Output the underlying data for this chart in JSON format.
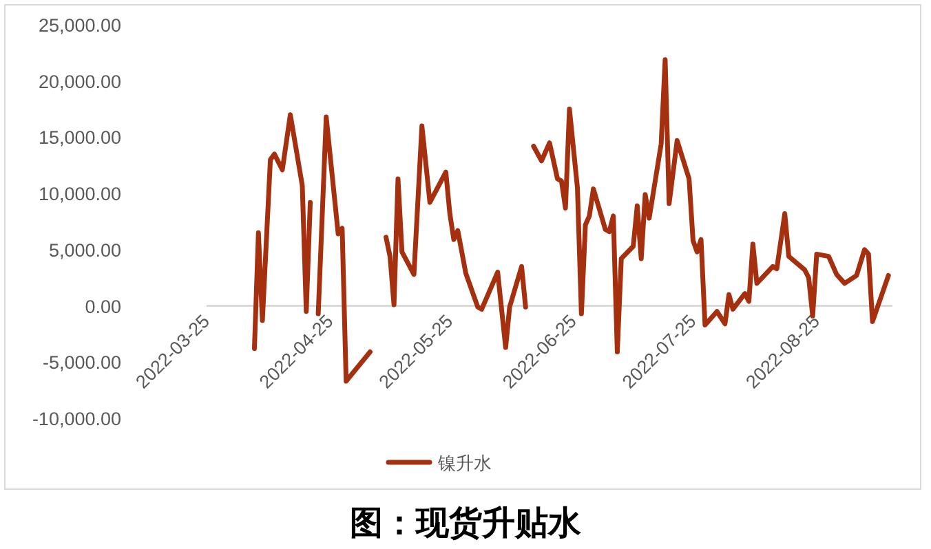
{
  "chart_data": {
    "type": "line",
    "title": "图：现货升贴水",
    "series": [
      {
        "name": "镍升水",
        "color": "#a5300f",
        "x": [
          "2022-04-06",
          "2022-04-07",
          "2022-04-08",
          "2022-04-10",
          "2022-04-11",
          "2022-04-13",
          "2022-04-15",
          "2022-04-18",
          "2022-04-19",
          "2022-04-20"
        ],
        "values": [
          -3800,
          6500,
          -1300,
          13000,
          13500,
          12100,
          17000,
          10700,
          -500,
          9200
        ]
      },
      {
        "color": "#a5300f",
        "x": [
          "2022-04-22",
          "2022-04-24",
          "2022-04-27",
          "2022-04-28",
          "2022-04-29",
          "2022-05-05"
        ],
        "values": [
          -700,
          16800,
          6400,
          6900,
          -6700,
          -4100
        ]
      },
      {
        "color": "#a5300f",
        "x": [
          "2022-05-09",
          "2022-05-10",
          "2022-05-11",
          "2022-05-12",
          "2022-05-13",
          "2022-05-16",
          "2022-05-18",
          "2022-05-20",
          "2022-05-24",
          "2022-05-25",
          "2022-05-26",
          "2022-05-27",
          "2022-05-29",
          "2022-06-01",
          "2022-06-02",
          "2022-06-06",
          "2022-06-08",
          "2022-06-09",
          "2022-06-12",
          "2022-06-13"
        ],
        "values": [
          6100,
          4400,
          100,
          11300,
          4800,
          2800,
          16000,
          9200,
          11900,
          8200,
          5900,
          6700,
          2900,
          -100,
          -300,
          3000,
          -3700,
          -100,
          3500,
          -100
        ]
      },
      {
        "color": "#a5300f",
        "x": [
          "2022-06-15",
          "2022-06-17",
          "2022-06-19",
          "2022-06-21",
          "2022-06-22",
          "2022-06-23",
          "2022-06-24",
          "2022-06-26",
          "2022-06-27",
          "2022-06-28",
          "2022-06-29",
          "2022-06-30",
          "2022-07-03",
          "2022-07-04",
          "2022-07-05",
          "2022-07-06",
          "2022-07-07",
          "2022-07-10",
          "2022-07-11",
          "2022-07-12",
          "2022-07-13",
          "2022-07-14",
          "2022-07-17",
          "2022-07-18",
          "2022-07-19",
          "2022-07-21",
          "2022-07-24",
          "2022-07-25",
          "2022-07-26",
          "2022-07-27",
          "2022-07-28",
          "2022-07-31",
          "2022-08-02",
          "2022-08-03",
          "2022-08-04",
          "2022-08-07",
          "2022-08-08",
          "2022-08-09",
          "2022-08-10",
          "2022-08-14",
          "2022-08-15",
          "2022-08-17",
          "2022-08-18",
          "2022-08-22",
          "2022-08-23",
          "2022-08-24",
          "2022-08-25",
          "2022-08-28",
          "2022-08-30",
          "2022-09-01",
          "2022-09-04",
          "2022-09-06",
          "2022-09-07",
          "2022-09-08",
          "2022-09-12"
        ],
        "values": [
          14200,
          12900,
          14500,
          11300,
          11100,
          8700,
          17500,
          10500,
          -700,
          7200,
          8000,
          10400,
          6800,
          6600,
          8000,
          -4100,
          4200,
          5300,
          8900,
          4200,
          9900,
          7800,
          14400,
          21900,
          9100,
          14700,
          11300,
          5800,
          4800,
          5900,
          -1700,
          -500,
          -1600,
          1000,
          -300,
          1100,
          400,
          5500,
          2000,
          3500,
          3300,
          8200,
          4400,
          3200,
          2500,
          -900,
          4600,
          4400,
          2800,
          2000,
          2700,
          5000,
          4600,
          -1400,
          2700
        ]
      }
    ],
    "xlim": [
      "2022-03-25",
      "2022-09-13"
    ],
    "xticks": [
      "2022-03-25",
      "2022-04-25",
      "2022-05-25",
      "2022-06-25",
      "2022-07-25",
      "2022-08-25"
    ],
    "ylim": [
      -10000,
      25000
    ],
    "yticks": [
      {
        "value": -10000,
        "label": "-10,000.00"
      },
      {
        "value": -5000,
        "label": "-5,000.00"
      },
      {
        "value": 0,
        "label": "0.00"
      },
      {
        "value": 5000,
        "label": "5,000.00"
      },
      {
        "value": 10000,
        "label": "10,000.00"
      },
      {
        "value": 15000,
        "label": "15,000.00"
      },
      {
        "value": 20000,
        "label": "20,000.00"
      },
      {
        "value": 25000,
        "label": "25,000.00"
      }
    ],
    "grid": false,
    "legend": "bottom",
    "line_style": "solid",
    "marker": "none"
  }
}
